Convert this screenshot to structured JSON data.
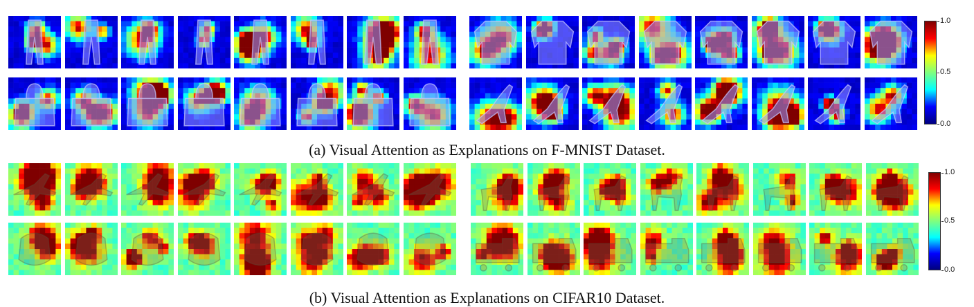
{
  "figure": {
    "panel_a": {
      "caption": "(a) Visual Attention as Explanations on F-MNIST Dataset.",
      "rows": [
        {
          "left_class": "trouser",
          "right_class": "pullover"
        },
        {
          "left_class": "bag",
          "right_class": "sandal"
        }
      ],
      "colorbar": {
        "min_label": "0.0",
        "mid_label": "0.5",
        "max_label": "1.0"
      },
      "style": "fmnist"
    },
    "panel_b": {
      "caption": "(b) Visual Attention as Explanations on CIFAR10 Dataset.",
      "rows": [
        {
          "left_class": "airplane",
          "right_class": "horse"
        },
        {
          "left_class": "dog",
          "right_class": "truck"
        }
      ],
      "colorbar": {
        "min_label": "0.0",
        "mid_label": "0.5",
        "max_label": "1.0"
      },
      "style": "cifar"
    },
    "colormap": "jet",
    "colormap_stops": [
      "#00007f",
      "#0000ff",
      "#00ffff",
      "#7fff7f",
      "#ffff00",
      "#ff0000",
      "#7f0000"
    ]
  }
}
